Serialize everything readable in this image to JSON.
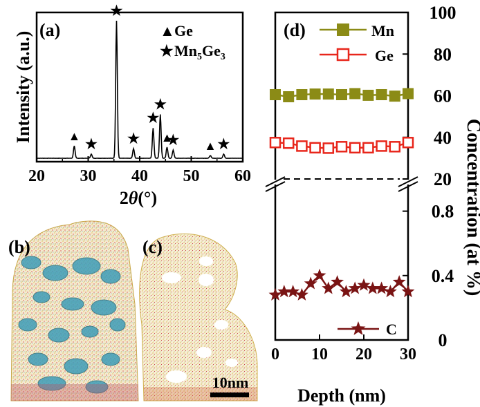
{
  "chart_data": [
    {
      "panel": "(a)",
      "type": "line",
      "xlabel_prefix": "2",
      "xlabel_theta": "θ",
      "xlabel_unit": "(°)",
      "ylabel": "Intensity (a.u.)",
      "xlim": [
        20,
        60
      ],
      "xticks": [
        "20",
        "30",
        "40",
        "50",
        "60"
      ],
      "legend": [
        {
          "symbol": "▲",
          "label": "Ge"
        },
        {
          "symbol": "★",
          "label_main": "Mn",
          "sub1": "5",
          "mid": "Ge",
          "sub2": "3"
        }
      ],
      "peaks": [
        {
          "x": 27.3,
          "h": 0.09,
          "marker": "▲"
        },
        {
          "x": 30.6,
          "h": 0.03,
          "marker": "★"
        },
        {
          "x": 35.5,
          "h": 1.0,
          "marker": "★"
        },
        {
          "x": 38.8,
          "h": 0.07,
          "marker": "★"
        },
        {
          "x": 42.6,
          "h": 0.22,
          "marker": "★"
        },
        {
          "x": 44.0,
          "h": 0.32,
          "marker": "★"
        },
        {
          "x": 45.3,
          "h": 0.08,
          "marker": "▲"
        },
        {
          "x": 46.5,
          "h": 0.06,
          "marker": "★"
        },
        {
          "x": 53.7,
          "h": 0.02,
          "marker": "▲"
        },
        {
          "x": 56.3,
          "h": 0.03,
          "marker": "★"
        }
      ]
    },
    {
      "panel": "(d)",
      "type": "line",
      "xlabel": "Depth (nm)",
      "ylabel": "Concentration (at %)",
      "xlim": [
        0,
        30
      ],
      "xticks": [
        "0",
        "10",
        "20",
        "30"
      ],
      "upper_ylim": [
        20,
        100
      ],
      "upper_yticks": [
        "20",
        "40",
        "60",
        "80",
        "100"
      ],
      "lower_ylim": [
        0,
        1.0
      ],
      "lower_yticks": [
        "0",
        "0.4",
        "0.8"
      ],
      "x": [
        0,
        3,
        6,
        9,
        12,
        15,
        18,
        21,
        24,
        27,
        30
      ],
      "series": [
        {
          "name": "Mn",
          "color": "#8b8b16",
          "marker": "filled-square",
          "values": [
            60.5,
            59.5,
            60.5,
            60.8,
            60.8,
            60.5,
            61.0,
            60.2,
            60.5,
            59.8,
            61.0
          ]
        },
        {
          "name": "Ge",
          "color": "#e8261b",
          "marker": "open-square",
          "values": [
            37.5,
            37.2,
            35.8,
            35.0,
            34.8,
            35.5,
            35.0,
            35.0,
            35.8,
            35.5,
            37.5
          ]
        },
        {
          "name": "C",
          "color": "#7a1414",
          "marker": "star",
          "x": [
            0,
            2,
            4,
            6,
            8,
            10,
            12,
            14,
            16,
            18,
            20,
            22,
            24,
            26,
            28,
            30
          ],
          "values": [
            0.28,
            0.3,
            0.3,
            0.28,
            0.35,
            0.4,
            0.32,
            0.36,
            0.3,
            0.32,
            0.34,
            0.32,
            0.32,
            0.3,
            0.36,
            0.3
          ]
        }
      ]
    }
  ],
  "images": {
    "b_label": "(b)",
    "c_label": "(c)",
    "scale_label": "10nm"
  }
}
